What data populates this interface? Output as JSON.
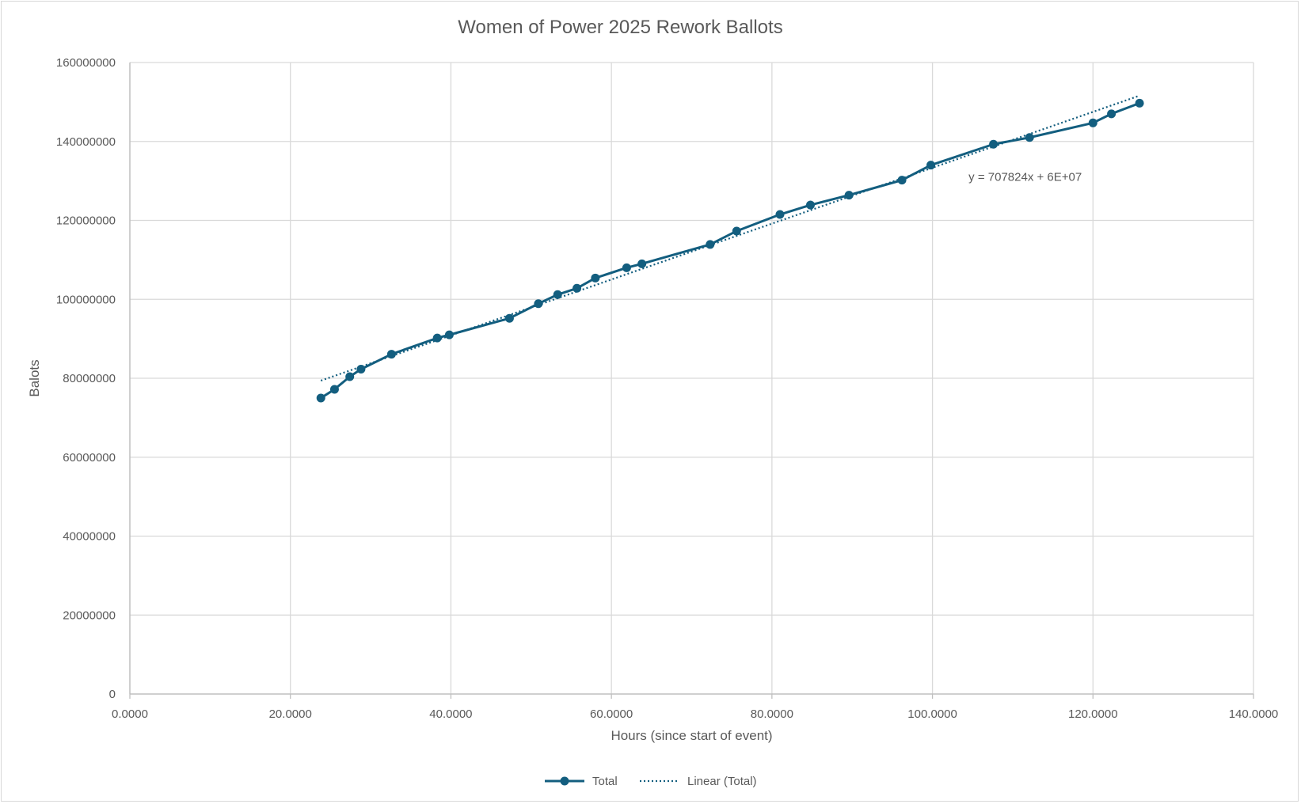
{
  "chart_data": {
    "type": "scatter",
    "title": "Women of Power 2025 Rework Ballots",
    "xlabel": "Hours (since start of event)",
    "ylabel": "Balots",
    "xlim": [
      0,
      140
    ],
    "ylim": [
      0,
      160000000
    ],
    "x_ticks": [
      "0.0000",
      "20.0000",
      "40.0000",
      "60.0000",
      "80.0000",
      "100.0000",
      "120.0000",
      "140.0000"
    ],
    "y_ticks": [
      "0",
      "20000000",
      "40000000",
      "60000000",
      "80000000",
      "100000000",
      "120000000",
      "140000000",
      "160000000"
    ],
    "grid": true,
    "legend_position": "bottom",
    "series": [
      {
        "name": "Total",
        "style": "line-with-markers",
        "color": "#135e7f",
        "x": [
          23.8,
          25.5,
          27.4,
          28.8,
          32.6,
          38.3,
          39.8,
          47.3,
          50.9,
          53.3,
          55.7,
          58.0,
          61.9,
          63.8,
          72.3,
          75.6,
          81.0,
          84.8,
          89.6,
          96.2,
          99.8,
          107.6,
          112.1,
          120.0,
          122.3,
          125.8
        ],
        "y": [
          75000000,
          77200000,
          80400000,
          82300000,
          86100000,
          90200000,
          91000000,
          95200000,
          98900000,
          101200000,
          102800000,
          105400000,
          108000000,
          109000000,
          113900000,
          117300000,
          121500000,
          123900000,
          126400000,
          130200000,
          134000000,
          139300000,
          141000000,
          144700000,
          147000000,
          149700000
        ]
      },
      {
        "name": "Linear (Total)",
        "style": "dotted-trendline",
        "color": "#135e7f",
        "x": [
          23.8,
          125.8
        ],
        "y": [
          79400000,
          151600000
        ]
      }
    ],
    "annotations": [
      {
        "text": "y = 707824x + 6E+07",
        "x": 104.5,
        "y": 130000000
      }
    ]
  }
}
